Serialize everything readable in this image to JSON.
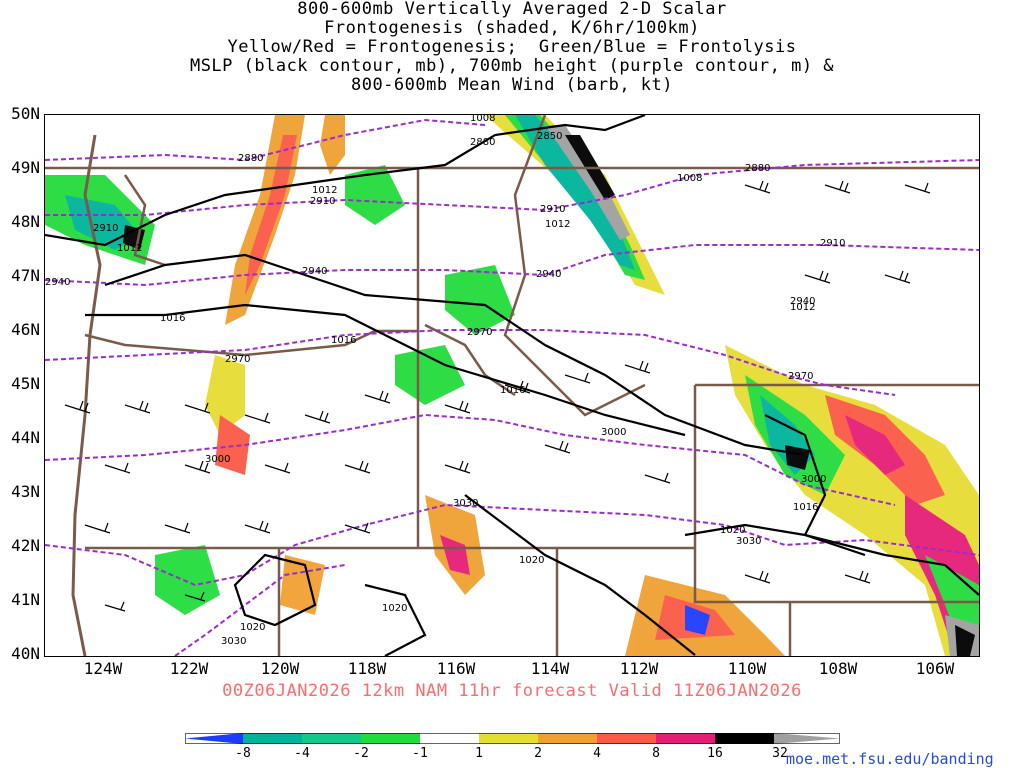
{
  "title_lines": [
    "800-600mb Vertically Averaged 2-D Scalar",
    "Frontogenesis (shaded, K/6hr/100km)",
    "Yellow/Red = Frontogenesis;  Green/Blue = Frontolysis",
    "MSLP (black contour, mb), 700mb height (purple contour, m) &",
    "800-600mb Mean Wind (barb, kt)"
  ],
  "lat_labels": [
    "50N",
    "49N",
    "48N",
    "47N",
    "46N",
    "45N",
    "44N",
    "43N",
    "42N",
    "41N",
    "40N"
  ],
  "lon_labels": [
    "124W",
    "122W",
    "120W",
    "118W",
    "116W",
    "114W",
    "112W",
    "110W",
    "108W",
    "106W"
  ],
  "valid_line": "00Z06JAN2026 12km NAM 11hr forecast Valid 11Z06JAN2026",
  "colorbar": {
    "ticks": [
      "-8",
      "-4",
      "-2",
      "-1",
      "1",
      "2",
      "4",
      "8",
      "16",
      "32"
    ],
    "colors": [
      "#1e3cff",
      "#00b49b",
      "#14c88c",
      "#23dc3c",
      "#ffffff",
      "#e6dc32",
      "#f0a032",
      "#fa5a46",
      "#e61e78",
      "#000000",
      "#a0a0a0"
    ]
  },
  "mslp_labels": [
    "1008",
    "1008",
    "1012",
    "1012",
    "1012",
    "1016",
    "1016",
    "1016",
    "1016",
    "1020",
    "1020",
    "1020",
    "1020",
    "1012"
  ],
  "height_labels": [
    "2850",
    "2880",
    "2880",
    "2880",
    "2910",
    "2910",
    "2910",
    "2910",
    "2940",
    "2940",
    "2940",
    "2940",
    "2970",
    "2970",
    "2970",
    "3000",
    "3000",
    "3000",
    "3030",
    "3030",
    "3030"
  ],
  "url": "moe.met.fsu.edu/banding"
}
